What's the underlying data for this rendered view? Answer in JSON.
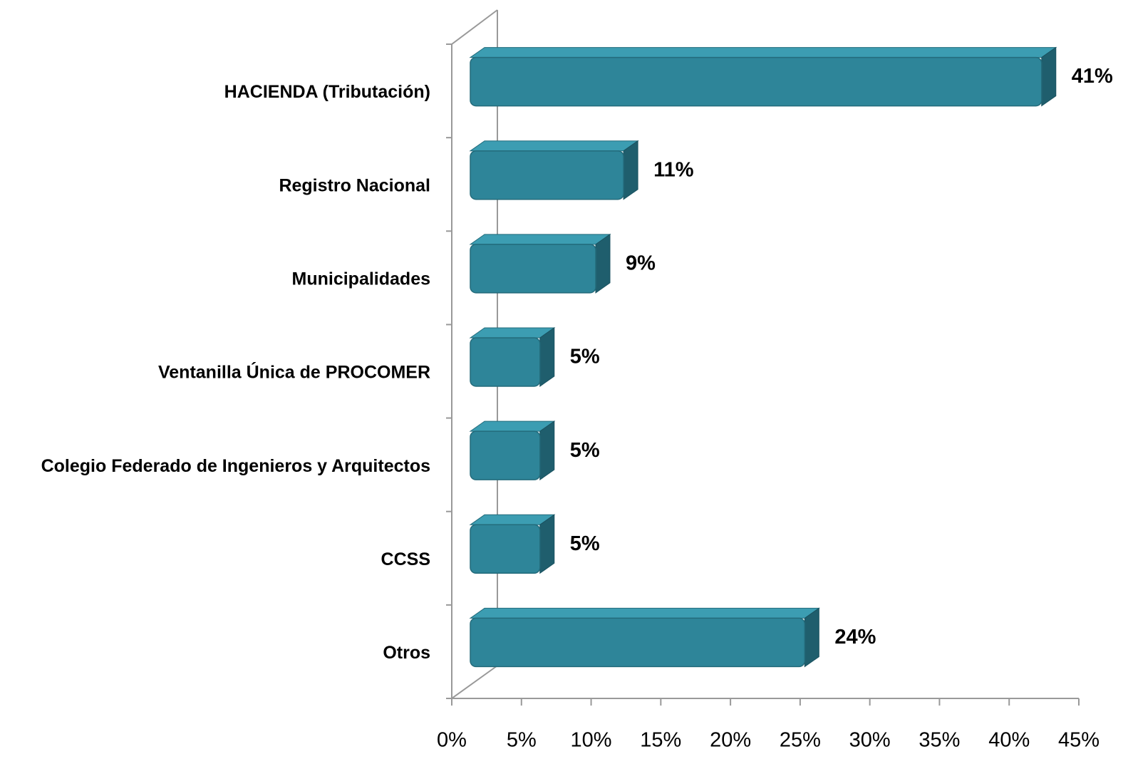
{
  "chart_data": {
    "type": "bar",
    "orientation": "horizontal",
    "categories": [
      "HACIENDA (Tributación)",
      "Registro Nacional",
      "Municipalidades",
      "Ventanilla Única de PROCOMER",
      "Colegio Federado de Ingenieros y Arquitectos",
      "CCSS",
      "Otros"
    ],
    "values": [
      41,
      11,
      9,
      5,
      5,
      5,
      24
    ],
    "value_labels": [
      "41%",
      "11%",
      "9%",
      "5%",
      "5%",
      "5%",
      "24%"
    ],
    "color": "#2e8599",
    "xlim": [
      0,
      45
    ],
    "xticks": [
      {
        "value": 0,
        "label": "0%"
      },
      {
        "value": 5,
        "label": "5%"
      },
      {
        "value": 10,
        "label": "10%"
      },
      {
        "value": 15,
        "label": "15%"
      },
      {
        "value": 20,
        "label": "20%"
      },
      {
        "value": 25,
        "label": "25%"
      },
      {
        "value": 30,
        "label": "30%"
      },
      {
        "value": 35,
        "label": "35%"
      },
      {
        "value": 40,
        "label": "40%"
      },
      {
        "value": 45,
        "label": "45%"
      }
    ],
    "grid": false
  }
}
